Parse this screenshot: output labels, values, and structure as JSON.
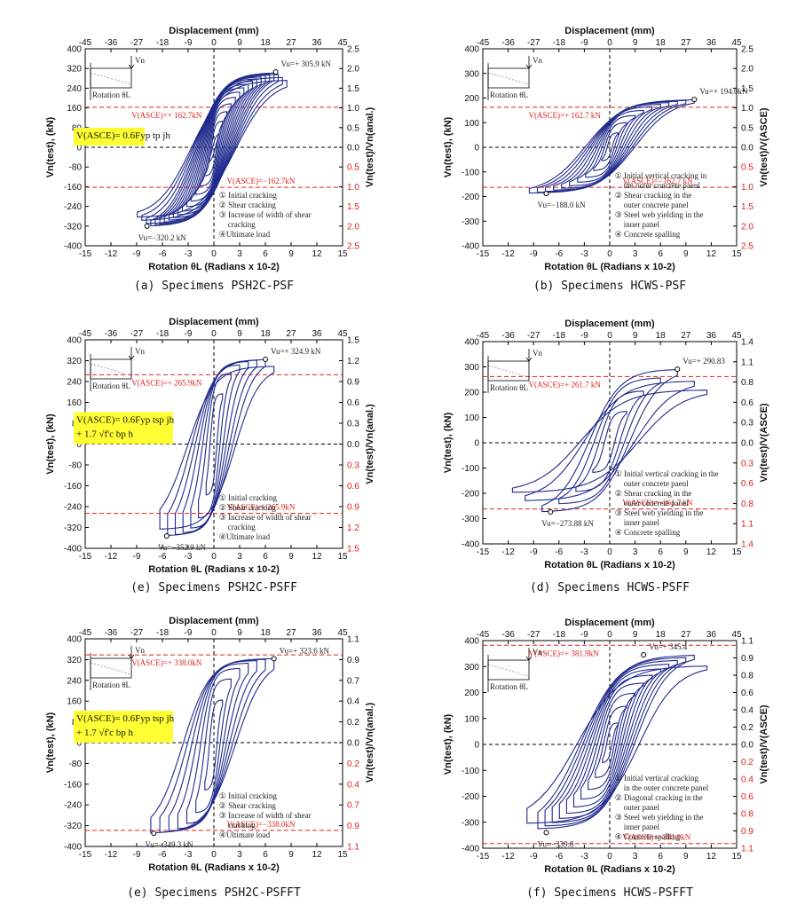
{
  "colors": {
    "curve": "#1f2a8c",
    "ref_line": "#e0201b",
    "highlight": "#ffff33",
    "frame": "#000000"
  },
  "chart_data": [
    {
      "type": "line",
      "caption": "(a) Specimens PSH2C-PSF",
      "xlabel": "Rotation θL (Radians x 10-2)",
      "xlim": [
        -15,
        15
      ],
      "x_ticks": [
        "-15",
        "-12",
        "-9",
        "-6",
        "-3",
        "0",
        "3",
        "6",
        "9",
        "12",
        "15"
      ],
      "x2label": "Displacement (mm)",
      "x2_ticks": [
        "-45",
        "-36",
        "-27",
        "-18",
        "-9",
        "0",
        "9",
        "18",
        "27",
        "36",
        "45"
      ],
      "ylabel": "Vn(test), (kN)",
      "ylim": [
        -400,
        400
      ],
      "y_ticks": [
        "400",
        "320",
        "240",
        "160",
        "80",
        "0",
        "-80",
        "-160",
        "-240",
        "-320",
        "-400"
      ],
      "y2label": "Vn(test)/Vn(anal.)",
      "y2_ticks": [
        "2.5",
        "2.0",
        "1.5",
        "1.0",
        "0.5",
        "0.0",
        "0.5",
        "1.0",
        "1.5",
        "2.0",
        "2.5"
      ],
      "y2_max": 2.5,
      "grid": false,
      "ref_lines": [
        {
          "y": 162.7,
          "label": "V(ASCE)=+ 162.7kN"
        },
        {
          "y": -162.7,
          "label": "V(ASCE)=−162.7kN"
        }
      ],
      "peak_pos": {
        "x": 7.2,
        "y": 305.9,
        "label": "Vu=+ 305.9 kN"
      },
      "peak_neg": {
        "x": -7.8,
        "y": -320.2,
        "label": "Vu=−320.2 kN"
      },
      "formula": [
        "V(ASCE)= 0.6Fyp tp jh"
      ],
      "legend": [
        "① Initial cracking",
        "② Shear cracking",
        "③ Increase of width of shear",
        "cracking",
        "④Ultimate load"
      ],
      "loop": {
        "amps": [
          0.5,
          1,
          1.5,
          2,
          2.5,
          3,
          3.5,
          4,
          4.5,
          5,
          5.5,
          6,
          6.5,
          7,
          7.5,
          8,
          8.5
        ],
        "peak_amp": 7.2,
        "neg_scale": 1.05,
        "Vp": 305,
        "Vn": -320,
        "k": 0.4,
        "gap": 0.3,
        "neg_gap": 0.3
      }
    },
    {
      "type": "line",
      "caption": "(b) Specimens HCWS-PSF",
      "xlabel": "Rotation θL (Radians x 10-2)",
      "xlim": [
        -15,
        15
      ],
      "x_ticks": [
        "-15",
        "-12",
        "-9",
        "-6",
        "-3",
        "0",
        "3",
        "6",
        "9",
        "12",
        "15"
      ],
      "x2label": "Displacement (mm)",
      "x2_ticks": [
        "-45",
        "-36",
        "-27",
        "-18",
        "-9",
        "0",
        "9",
        "18",
        "27",
        "36",
        "45"
      ],
      "ylabel": "Vn(test), (kN)",
      "ylim": [
        -400,
        400
      ],
      "y_ticks": [
        "400",
        "300",
        "200",
        "100",
        "0",
        "-100",
        "-200",
        "-300",
        "-400"
      ],
      "y2label": "Vn(test)/V(ASCE)",
      "y2_ticks": [
        "2.5",
        "2.0",
        "1.5",
        "1.0",
        "0.5",
        "0.0",
        "0.5",
        "1.0",
        "1.5",
        "2.0",
        "2.5"
      ],
      "y2_max": 2.5,
      "grid": false,
      "ref_lines": [
        {
          "y": 162.7,
          "label": "V(ASCE)=+ 162.7 kN"
        },
        {
          "y": -162.7,
          "label": "V(ASCE)=−162.7 kN"
        }
      ],
      "peak_pos": {
        "x": 10,
        "y": 194.0,
        "label": "Vu=+ 194.0kN"
      },
      "peak_neg": {
        "x": -7.5,
        "y": -188.0,
        "label": "Vu=−188.0 kN"
      },
      "formula": [],
      "legend": [
        "① Initial vertical cracking in",
        "the outer concrete paenl",
        "② Shear cracking in the",
        "outer concrete panel",
        "③ Steel web yielding in the",
        "inner panel",
        "④ Concrete spalling"
      ],
      "loop": {
        "amps": [
          1,
          2,
          3,
          4,
          5,
          6,
          7,
          8,
          9,
          10
        ],
        "peak_amp": 10,
        "neg_scale": 0.95,
        "Vp": 194,
        "Vn": -188,
        "k": 0.35,
        "gap": 0.3,
        "neg_gap": 0.3
      }
    },
    {
      "type": "line",
      "caption": "(e) Specimens PSH2C-PSFF",
      "xlabel": "Rotation θL (Radians x 10-2)",
      "xlim": [
        -15,
        15
      ],
      "x_ticks": [
        "-15",
        "-12",
        "-9",
        "-6",
        "-3",
        "0",
        "3",
        "6",
        "9",
        "12",
        "15"
      ],
      "x2label": "Displacement (mm)",
      "x2_ticks": [
        "-45",
        "-36",
        "-27",
        "-18",
        "-9",
        "0",
        "9",
        "18",
        "27",
        "36",
        "45"
      ],
      "ylabel": "Vn(test), (kN)",
      "ylim": [
        -400,
        400
      ],
      "y_ticks": [
        "400",
        "320",
        "240",
        "160",
        "80",
        "0",
        "-80",
        "-160",
        "-240",
        "-320",
        "-400"
      ],
      "y2label": "Vn(test)/Vn(anal.)",
      "y2_ticks": [
        "1.5",
        "1.2",
        "0.9",
        "0.6",
        "0.3",
        "0.0",
        "0.3",
        "0.6",
        "0.9",
        "1.2",
        "1.5"
      ],
      "y2_max": 1.5,
      "grid": false,
      "ref_lines": [
        {
          "y": 265.9,
          "label": "V(ASCE)=+ 265.9kN"
        },
        {
          "y": -265.9,
          "label": "V(ASCE)=−265.9kN"
        }
      ],
      "peak_pos": {
        "x": 6,
        "y": 324.9,
        "label": "Vu=+ 324.9 kN"
      },
      "peak_neg": {
        "x": -5.5,
        "y": -352.9,
        "label": "Vu=−352.9 kN"
      },
      "formula": [
        "V(ASCE)= 0.6Fyp tsp jh",
        "+ 1.7 √f'c bp h"
      ],
      "legend": [
        "① Initial cracking",
        "② Shear cracking",
        "③ Increase of width of shear",
        "cracking",
        "④Ultimate load"
      ],
      "loop": {
        "amps": [
          1,
          2,
          3,
          4,
          5,
          6,
          7
        ],
        "peak_amp": 6,
        "neg_scale": 0.9,
        "Vp": 325,
        "Vn": -353,
        "k": 0.9,
        "gap": 0.5,
        "neg_gap": 0.35
      }
    },
    {
      "type": "line",
      "caption": "(d) Specimens HCWS-PSFF",
      "xlabel": "Rotation θL (Radians x 10-2)",
      "xlim": [
        -15,
        15
      ],
      "x_ticks": [
        "-15",
        "-12",
        "-9",
        "-6",
        "-3",
        "0",
        "3",
        "6",
        "9",
        "12",
        "15"
      ],
      "x2label": "Displacement (mm)",
      "x2_ticks": [
        "-45",
        "-36",
        "-27",
        "-18",
        "-9",
        "0",
        "9",
        "18",
        "27",
        "36",
        "45"
      ],
      "ylabel": "Vn(test), (kN)",
      "ylim": [
        -400,
        400
      ],
      "y_ticks": [
        "400",
        "300",
        "200",
        "100",
        "0",
        "-100",
        "-200",
        "-300",
        "-400"
      ],
      "y2label": "Vn(test)/V(ASCE)",
      "y2_ticks": [
        "1.4",
        "1.1",
        "0.8",
        "0.6",
        "0.3",
        "0.0",
        "0.3",
        "0.6",
        "0.8",
        "1.1",
        "1.4"
      ],
      "y2_max": 1.4,
      "grid": false,
      "ref_lines": [
        {
          "y": 261.7,
          "label": "V(ASCE)=+ 261.7 kN"
        },
        {
          "y": -261.7,
          "label": "V(ASCE)=−261.7 kN"
        }
      ],
      "peak_pos": {
        "x": 8,
        "y": 290.83,
        "label": "Vu=+ 290.83"
      },
      "peak_neg": {
        "x": -7,
        "y": -273.88,
        "label": "Vu=−273.88 kN"
      },
      "formula": [],
      "legend": [
        "① Initial vertical cracking in the",
        "outer concrete paenl",
        "② Shear cracking in the",
        "outer concrete panel",
        "③ Steel web yielding in the",
        "inner panel",
        "④ Concrete spalling"
      ],
      "loop": {
        "amps": [
          2,
          4,
          6,
          8,
          10,
          11.5
        ],
        "peak_amp": 8,
        "neg_scale": 1.0,
        "Vp": 291,
        "Vn": -274,
        "k": 0.22,
        "gap": 0.3,
        "neg_gap": 0.3
      }
    },
    {
      "type": "line",
      "caption": "(e) Specimens PSH2C-PSFFT",
      "xlabel": "Rotation θL (Radians x 10-2)",
      "xlim": [
        -15,
        15
      ],
      "x_ticks": [
        "-15",
        "-12",
        "-9",
        "-6",
        "-3",
        "0",
        "3",
        "6",
        "9",
        "12",
        "15"
      ],
      "x2label": "Displacement (mm)",
      "x2_ticks": [
        "-45",
        "-36",
        "-27",
        "-18",
        "-9",
        "0",
        "9",
        "18",
        "27",
        "36",
        "45"
      ],
      "ylabel": "Vn(test), (kN)",
      "ylim": [
        -400,
        400
      ],
      "y_ticks": [
        "400",
        "320",
        "240",
        "160",
        "80",
        "0",
        "-80",
        "-160",
        "-240",
        "-320",
        "-400"
      ],
      "y2label": "Vn(test)/Vn(anal.)",
      "y2_ticks": [
        "1.1",
        "0.9",
        "0.7",
        "0.4",
        "0.2",
        "0.0",
        "0.2",
        "0.4",
        "0.7",
        "0.9",
        "1.1"
      ],
      "y2_max": 1.1,
      "grid": false,
      "ref_lines": [
        {
          "y": 338.0,
          "label": "V(ASCE)=+ 338.0kN"
        },
        {
          "y": -338.0,
          "label": "V(ASCE)=−338.0kN"
        }
      ],
      "peak_pos": {
        "x": 7,
        "y": 323.6,
        "label": "Vu=+ 323.6 kN"
      },
      "peak_neg": {
        "x": -7,
        "y": -349.3,
        "label": "Vu=−349.3 kN"
      },
      "formula": [
        "V(ASCE)= 0.6Fyp tsp jh",
        "+ 1.7 √f'c bp h"
      ],
      "legend": [
        "① Initial cracking",
        "② Shear cracking",
        "③ Increase of width of shear",
        "cracking",
        "④Ultimate load"
      ],
      "loop": {
        "amps": [
          1,
          2,
          3,
          4,
          5,
          6,
          7
        ],
        "peak_amp": 7,
        "neg_scale": 1.05,
        "Vp": 324,
        "Vn": -349,
        "k": 0.7,
        "gap": 0.5,
        "neg_gap": 0.35
      }
    },
    {
      "type": "line",
      "caption": "(f) Specimens HCWS-PSFFT",
      "xlabel": "Rotation θL (Radians x 10-2)",
      "xlim": [
        -15,
        15
      ],
      "x_ticks": [
        "-15",
        "-12",
        "-9",
        "-6",
        "-3",
        "0",
        "3",
        "6",
        "9",
        "12",
        "15"
      ],
      "x2label": "Displacement (mm)",
      "x2_ticks": [
        "-45",
        "-36",
        "-27",
        "-18",
        "-9",
        "0",
        "9",
        "18",
        "27",
        "36",
        "45"
      ],
      "ylabel": "Vn(test), (kN)",
      "ylim": [
        -400,
        400
      ],
      "y_ticks": [
        "400",
        "300",
        "200",
        "100",
        "0",
        "-100",
        "-200",
        "-300",
        "-400"
      ],
      "y2label": "Vn(test)/V(ASCE)",
      "y2_ticks": [
        "1.1",
        "0.9",
        "0.8",
        "0.6",
        "0.4",
        "0.2",
        "0.0",
        "0.2",
        "0.4",
        "0.6",
        "0.8",
        "0.9",
        "1.1"
      ],
      "y2_max": 1.1,
      "grid": false,
      "ref_lines": [
        {
          "y": 381.9,
          "label": "V(ASCE)=+ 381.9kN"
        },
        {
          "y": -381.9,
          "label": "V(ASCE)=−381.9kN"
        }
      ],
      "peak_pos": {
        "x": 4,
        "y": 345.4,
        "label": "Vu=+ 345.4"
      },
      "peak_neg": {
        "x": -7.5,
        "y": -339.8,
        "label": "Vu=−339.8"
      },
      "formula": [],
      "legend": [
        "① Initial vertical cracking",
        "in the outer concrete panel",
        "② Diagonal cracking in the",
        "outer panel",
        "③ Steel web yielding in the",
        "inner panel",
        "④ Concrete spalling"
      ],
      "loop": {
        "amps": [
          1,
          2,
          3,
          4,
          5,
          6,
          7,
          8,
          9,
          10,
          11.5
        ],
        "peak_amp": 10,
        "neg_scale": 0.85,
        "Vp": 345,
        "Vn": -340,
        "k": 0.25,
        "gap": 0.4,
        "neg_gap": 0.3
      }
    }
  ],
  "inset": {
    "load_label": "Vn",
    "rotation_label": "Rotation θL"
  }
}
